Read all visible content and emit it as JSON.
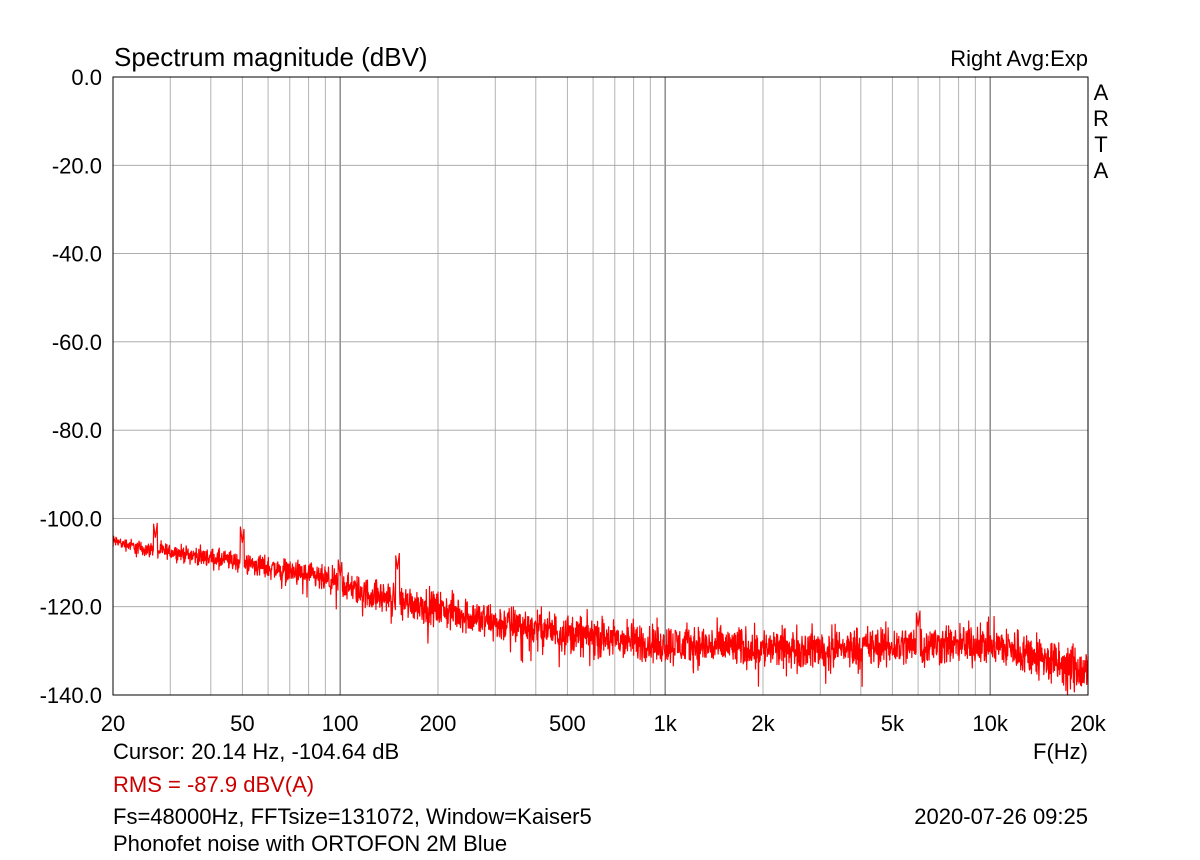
{
  "header": {
    "title": "Spectrum magnitude (dBV)",
    "mode": "Right Avg:Exp",
    "brand": [
      "A",
      "R",
      "T",
      "A"
    ]
  },
  "footer": {
    "cursor": "Cursor: 20.14 Hz, -104.64 dB",
    "x_unit": "F(Hz)",
    "rms": "RMS =  -87.9 dBV(A)",
    "fft_info": "Fs=48000Hz, FFTsize=131072, Window=Kaiser5",
    "datetime": "2020-07-26  09:25",
    "description": "Phonofet noise with ORTOFON 2M Blue"
  },
  "colors": {
    "trace": "#ff0000",
    "rms": "#cc0000",
    "grid": "#a0a0a0",
    "frame": "#000000"
  },
  "chart_data": {
    "type": "line",
    "title": "Spectrum magnitude (dBV)",
    "xlabel": "F(Hz)",
    "ylabel": "",
    "xscale": "log",
    "xlim": [
      20,
      20000
    ],
    "ylim": [
      -140,
      0
    ],
    "grid": true,
    "x_ticks": [
      {
        "value": 20,
        "label": "20"
      },
      {
        "value": 50,
        "label": "50"
      },
      {
        "value": 100,
        "label": "100"
      },
      {
        "value": 200,
        "label": "200"
      },
      {
        "value": 500,
        "label": "500"
      },
      {
        "value": 1000,
        "label": "1k"
      },
      {
        "value": 2000,
        "label": "2k"
      },
      {
        "value": 5000,
        "label": "5k"
      },
      {
        "value": 10000,
        "label": "10k"
      },
      {
        "value": 20000,
        "label": "20k"
      }
    ],
    "y_ticks": [
      {
        "value": 0,
        "label": "0.0"
      },
      {
        "value": -20,
        "label": "-20.0"
      },
      {
        "value": -40,
        "label": "-40.0"
      },
      {
        "value": -60,
        "label": "-60.0"
      },
      {
        "value": -80,
        "label": "-80.0"
      },
      {
        "value": -100,
        "label": "-100.0"
      },
      {
        "value": -120,
        "label": "-120.0"
      },
      {
        "value": -140,
        "label": "-140.0"
      }
    ],
    "series": [
      {
        "color": "#ff0000",
        "x": [
          20,
          25,
          30,
          40,
          50,
          60,
          80,
          100,
          120,
          150,
          200,
          300,
          500,
          700,
          1000,
          1500,
          2000,
          3000,
          5000,
          7000,
          10000,
          13000,
          16000,
          20000
        ],
        "y": [
          -105,
          -107,
          -107.5,
          -109,
          -110,
          -111,
          -113,
          -115,
          -117,
          -118.5,
          -120.5,
          -123.5,
          -126,
          -127.5,
          -128.5,
          -129,
          -129.5,
          -129.5,
          -129,
          -128.5,
          -128.5,
          -130.5,
          -133,
          -135
        ],
        "noise": [
          1,
          1.2,
          1.3,
          1.6,
          1.8,
          2,
          2.2,
          2.4,
          2.6,
          2.8,
          3,
          3.2,
          3.3,
          3.4,
          3.5,
          3.5,
          3.5,
          3.5,
          3.5,
          3.5,
          3.6,
          3.8,
          4,
          4.2
        ],
        "peaks": [
          {
            "x": 27,
            "y": -104.5
          },
          {
            "x": 50,
            "y": -105.5
          },
          {
            "x": 100,
            "y": -113
          },
          {
            "x": 150,
            "y": -111.5
          },
          {
            "x": 6000,
            "y": -124.5
          }
        ]
      }
    ]
  }
}
